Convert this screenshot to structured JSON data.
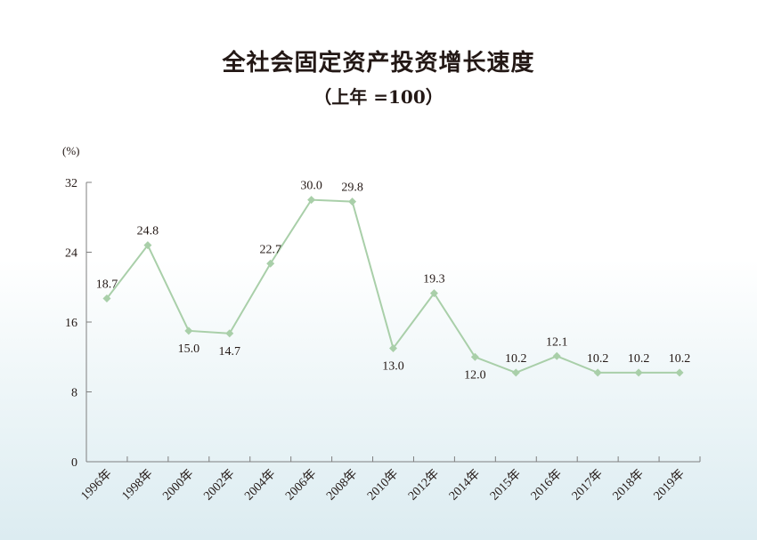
{
  "chart_data": {
    "type": "line",
    "title": "全社会固定资产投资增长速度",
    "subtitle": "（上年 =100）",
    "ylabel": "(%)",
    "ylim": [
      0,
      32
    ],
    "yticks": [
      0,
      8,
      16,
      24,
      32
    ],
    "categories": [
      "1996年",
      "1998年",
      "2000年",
      "2002年",
      "2004年",
      "2006年",
      "2008年",
      "2010年",
      "2012年",
      "2014年",
      "2015年",
      "2016年",
      "2017年",
      "2018年",
      "2019年"
    ],
    "series": [
      {
        "values": [
          18.7,
          24.8,
          15.0,
          14.7,
          22.7,
          30.0,
          29.8,
          13.0,
          19.3,
          12.0,
          10.2,
          12.1,
          10.2,
          10.2,
          10.2
        ],
        "labels": [
          "18.7",
          "24.8",
          "15.0",
          "14.7",
          "22.7",
          "30.0",
          "29.8",
          "13.0",
          "19.3",
          "12.0",
          "10.2",
          "12.1",
          "10.2",
          "10.2",
          "10.2"
        ],
        "label_position": [
          "above",
          "above",
          "below",
          "below",
          "above",
          "above",
          "above",
          "below",
          "above",
          "below",
          "above",
          "above",
          "above",
          "above",
          "above"
        ]
      }
    ],
    "line_color": "#a9cfa9",
    "marker_color": "#a9cfa9",
    "axis_color": "#7f7f7f",
    "grid": false,
    "legend": "none"
  }
}
